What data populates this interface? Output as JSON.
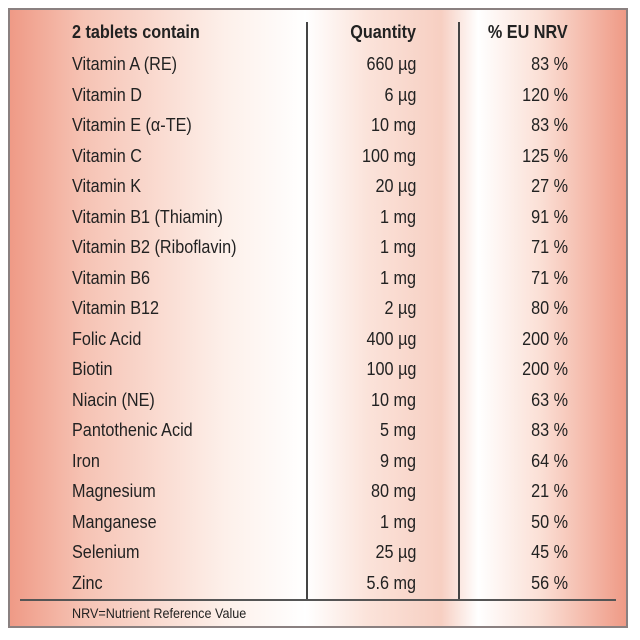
{
  "header": {
    "nutrient": "2 tablets contain",
    "quantity": "Quantity",
    "nrv": "% EU NRV"
  },
  "rows": [
    {
      "nutrient": "Vitamin A (RE)",
      "quantity": "660 µg",
      "nrv": "83 %"
    },
    {
      "nutrient": "Vitamin D",
      "quantity": "6 µg",
      "nrv": "120 %"
    },
    {
      "nutrient": "Vitamin E (α-TE)",
      "quantity": "10 mg",
      "nrv": "83 %"
    },
    {
      "nutrient": "Vitamin C",
      "quantity": "100 mg",
      "nrv": "125 %"
    },
    {
      "nutrient": "Vitamin K",
      "quantity": "20 µg",
      "nrv": "27 %"
    },
    {
      "nutrient": "Vitamin B1 (Thiamin)",
      "quantity": "1 mg",
      "nrv": "91 %"
    },
    {
      "nutrient": "Vitamin B2 (Riboflavin)",
      "quantity": "1 mg",
      "nrv": "71 %"
    },
    {
      "nutrient": "Vitamin B6",
      "quantity": "1 mg",
      "nrv": "71 %"
    },
    {
      "nutrient": "Vitamin B12",
      "quantity": "2 µg",
      "nrv": "80 %"
    },
    {
      "nutrient": "Folic Acid",
      "quantity": "400 µg",
      "nrv": "200 %"
    },
    {
      "nutrient": "Biotin",
      "quantity": "100 µg",
      "nrv": "200 %"
    },
    {
      "nutrient": "Niacin (NE)",
      "quantity": "10 mg",
      "nrv": "63 %"
    },
    {
      "nutrient": "Pantothenic Acid",
      "quantity": "5 mg",
      "nrv": "83 %"
    },
    {
      "nutrient": "Iron",
      "quantity": "9 mg",
      "nrv": "64 %"
    },
    {
      "nutrient": "Magnesium",
      "quantity": "80 mg",
      "nrv": "21 %"
    },
    {
      "nutrient": "Manganese",
      "quantity": "1 mg",
      "nrv": "50 %"
    },
    {
      "nutrient": "Selenium",
      "quantity": "25 µg",
      "nrv": "45 %"
    },
    {
      "nutrient": "Zinc",
      "quantity": "5.6 mg",
      "nrv": "56 %"
    }
  ],
  "footnote": "NRV=Nutrient Reference Value"
}
